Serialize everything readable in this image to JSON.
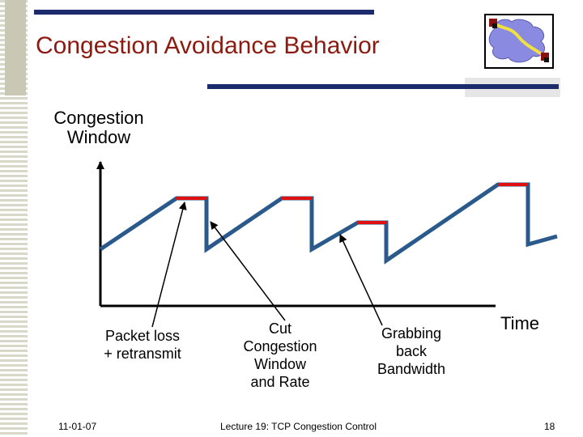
{
  "slide": {
    "title": "Congestion Avoidance Behavior",
    "footer_date": "11-01-07",
    "footer_center": "Lecture 19: TCP Congestion Control",
    "slide_number": "18"
  },
  "diagram": {
    "y_axis_label_line1": "Congestion",
    "y_axis_label_line2": "Window",
    "x_axis_label": "Time",
    "annotations": [
      {
        "lines": [
          "Packet loss",
          "+ retransmit"
        ]
      },
      {
        "lines": [
          "Cut",
          "Congestion",
          "Window",
          "and Rate"
        ]
      },
      {
        "lines": [
          "Grabbing",
          "back",
          "Bandwidth"
        ]
      }
    ]
  },
  "colors": {
    "title": "#8b1a10",
    "sawtooth": "#2a5a8c",
    "loss_marker": "#e01010",
    "accent_bar": "#1c2b6c"
  },
  "icons": {
    "logo": "network-cloud-logo-icon"
  }
}
